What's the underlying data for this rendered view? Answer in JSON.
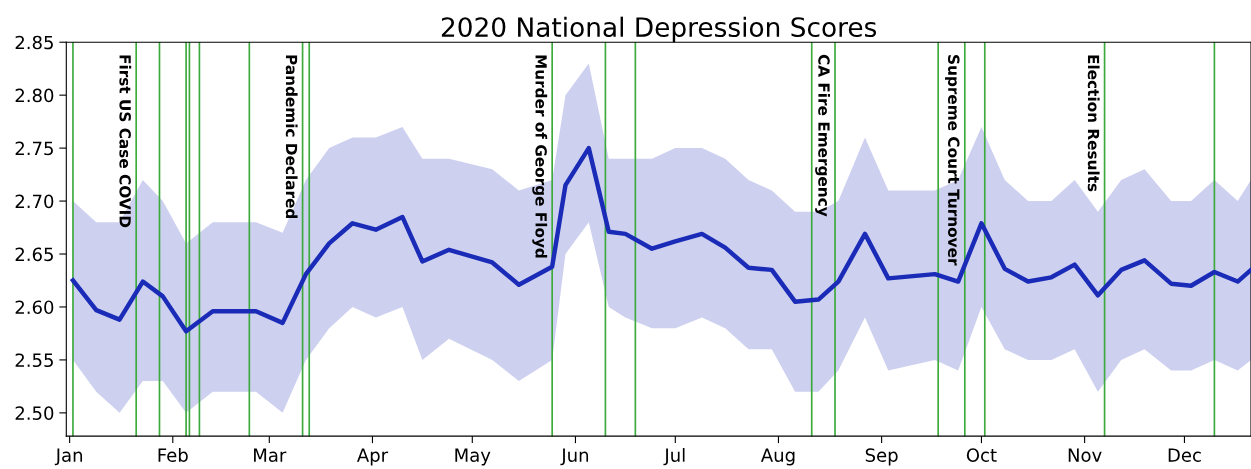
{
  "chart_data": {
    "type": "line",
    "title": "2020 National Depression Scores",
    "x": [
      "2020-01-02",
      "2020-01-09",
      "2020-01-16",
      "2020-01-23",
      "2020-01-29",
      "2020-02-05",
      "2020-02-13",
      "2020-02-26",
      "2020-03-05",
      "2020-03-12",
      "2020-03-19",
      "2020-03-26",
      "2020-04-02",
      "2020-04-10",
      "2020-04-16",
      "2020-04-24",
      "2020-05-07",
      "2020-05-15",
      "2020-05-25",
      "2020-05-29",
      "2020-06-05",
      "2020-06-11",
      "2020-06-16",
      "2020-06-24",
      "2020-07-01",
      "2020-07-09",
      "2020-07-16",
      "2020-07-23",
      "2020-07-30",
      "2020-08-06",
      "2020-08-13",
      "2020-08-19",
      "2020-08-27",
      "2020-09-03",
      "2020-09-17",
      "2020-09-24",
      "2020-10-01",
      "2020-10-08",
      "2020-10-15",
      "2020-10-22",
      "2020-10-29",
      "2020-11-05",
      "2020-11-12",
      "2020-11-19",
      "2020-11-27",
      "2020-12-03",
      "2020-12-10",
      "2020-12-17",
      "2020-12-21"
    ],
    "series": [
      {
        "color": "#1a2bb8",
        "values": [
          2.625,
          2.597,
          2.588,
          2.624,
          2.61,
          2.577,
          2.596,
          2.596,
          2.585,
          2.631,
          2.66,
          2.679,
          2.673,
          2.685,
          2.643,
          2.654,
          2.642,
          2.621,
          2.638,
          2.715,
          2.75,
          2.671,
          2.669,
          2.655,
          2.662,
          2.669,
          2.656,
          2.637,
          2.635,
          2.605,
          2.607,
          2.624,
          2.669,
          2.627,
          2.631,
          2.624,
          2.679,
          2.636,
          2.624,
          2.628,
          2.64,
          2.611,
          2.635,
          2.644,
          2.622,
          2.62,
          2.633,
          2.624,
          2.635
        ],
        "lower": [
          2.55,
          2.52,
          2.5,
          2.53,
          2.53,
          2.5,
          2.52,
          2.52,
          2.5,
          2.55,
          2.58,
          2.6,
          2.59,
          2.6,
          2.55,
          2.57,
          2.55,
          2.53,
          2.55,
          2.65,
          2.68,
          2.6,
          2.59,
          2.58,
          2.58,
          2.59,
          2.58,
          2.56,
          2.56,
          2.52,
          2.52,
          2.54,
          2.59,
          2.54,
          2.55,
          2.54,
          2.6,
          2.56,
          2.55,
          2.55,
          2.56,
          2.52,
          2.55,
          2.56,
          2.54,
          2.54,
          2.55,
          2.54,
          2.55
        ],
        "upper": [
          2.7,
          2.68,
          2.68,
          2.72,
          2.7,
          2.66,
          2.68,
          2.68,
          2.67,
          2.72,
          2.75,
          2.76,
          2.76,
          2.77,
          2.74,
          2.74,
          2.73,
          2.71,
          2.72,
          2.8,
          2.83,
          2.74,
          2.74,
          2.74,
          2.75,
          2.75,
          2.74,
          2.72,
          2.71,
          2.69,
          2.69,
          2.7,
          2.76,
          2.71,
          2.71,
          2.72,
          2.77,
          2.72,
          2.7,
          2.7,
          2.72,
          2.69,
          2.72,
          2.73,
          2.7,
          2.7,
          2.72,
          2.7,
          2.72
        ]
      }
    ],
    "xlim": [
      "2019-12-31",
      "2020-12-21"
    ],
    "xticks": [
      {
        "value": "2020-01-01",
        "label": "Jan"
      },
      {
        "value": "2020-02-01",
        "label": "Feb"
      },
      {
        "value": "2020-03-01",
        "label": "Mar"
      },
      {
        "value": "2020-04-01",
        "label": "Apr"
      },
      {
        "value": "2020-05-01",
        "label": "May"
      },
      {
        "value": "2020-06-01",
        "label": "Jun"
      },
      {
        "value": "2020-07-01",
        "label": "Jul"
      },
      {
        "value": "2020-08-01",
        "label": "Aug"
      },
      {
        "value": "2020-09-01",
        "label": "Sep"
      },
      {
        "value": "2020-10-01",
        "label": "Oct"
      },
      {
        "value": "2020-11-01",
        "label": "Nov"
      },
      {
        "value": "2020-12-01",
        "label": "Dec"
      }
    ],
    "ylim": [
      2.478,
      2.85
    ],
    "yticks": [
      {
        "value": 2.5,
        "label": "2.50"
      },
      {
        "value": 2.55,
        "label": "2.55"
      },
      {
        "value": 2.6,
        "label": "2.60"
      },
      {
        "value": 2.65,
        "label": "2.65"
      },
      {
        "value": 2.7,
        "label": "2.70"
      },
      {
        "value": 2.75,
        "label": "2.75"
      },
      {
        "value": 2.8,
        "label": "2.80"
      },
      {
        "value": 2.85,
        "label": "2.85"
      }
    ],
    "ref_lines": [
      {
        "axis": "x",
        "value": "2020-01-02",
        "color": "#3caa3c"
      },
      {
        "axis": "x",
        "value": "2020-01-21",
        "label": "First US Case COVID",
        "color": "#3caa3c"
      },
      {
        "axis": "x",
        "value": "2020-01-28",
        "color": "#3caa3c"
      },
      {
        "axis": "x",
        "value": "2020-02-05",
        "color": "#3caa3c"
      },
      {
        "axis": "x",
        "value": "2020-02-06",
        "color": "#3caa3c"
      },
      {
        "axis": "x",
        "value": "2020-02-09",
        "color": "#3caa3c"
      },
      {
        "axis": "x",
        "value": "2020-02-24",
        "color": "#3caa3c"
      },
      {
        "axis": "x",
        "value": "2020-03-11",
        "label": "Pandemic Declared",
        "color": "#3caa3c"
      },
      {
        "axis": "x",
        "value": "2020-03-13",
        "color": "#3caa3c"
      },
      {
        "axis": "x",
        "value": "2020-05-25",
        "label": "Murder of George Floyd",
        "color": "#3caa3c"
      },
      {
        "axis": "x",
        "value": "2020-06-10",
        "color": "#3caa3c"
      },
      {
        "axis": "x",
        "value": "2020-06-19",
        "color": "#3caa3c"
      },
      {
        "axis": "x",
        "value": "2020-08-11",
        "color": "#3caa3c"
      },
      {
        "axis": "x",
        "value": "2020-08-18",
        "label": "CA Fire Emergency",
        "color": "#3caa3c"
      },
      {
        "axis": "x",
        "value": "2020-09-18",
        "color": "#3caa3c"
      },
      {
        "axis": "x",
        "value": "2020-09-26",
        "label": "Supreme Court Turnover",
        "color": "#3caa3c"
      },
      {
        "axis": "x",
        "value": "2020-10-02",
        "color": "#3caa3c"
      },
      {
        "axis": "x",
        "value": "2020-11-07",
        "label": "Election Results",
        "color": "#3caa3c"
      },
      {
        "axis": "x",
        "value": "2020-12-10",
        "color": "#3caa3c"
      }
    ],
    "grid": false,
    "legend": false,
    "marker": "none",
    "line_style": "solid"
  }
}
